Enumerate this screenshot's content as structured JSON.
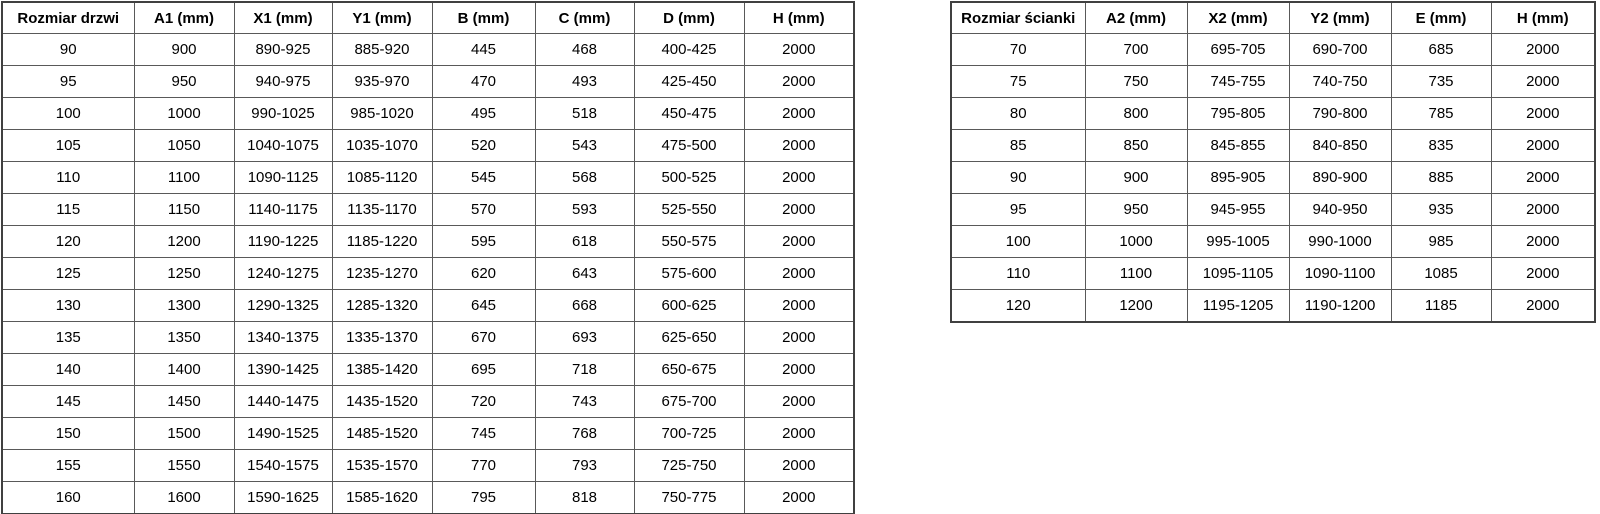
{
  "colors": {
    "background": "#ffffff",
    "border_inner": "#595959",
    "border_outer": "#404040",
    "text": "#000000"
  },
  "chart_data": [
    {
      "type": "table",
      "title": "Rozmiar drzwi",
      "columns": [
        "Rozmiar drzwi",
        "A1 (mm)",
        "X1 (mm)",
        "Y1 (mm)",
        "B (mm)",
        "C (mm)",
        "D (mm)",
        "H (mm)"
      ],
      "rows": [
        [
          "90",
          "900",
          "890-925",
          "885-920",
          "445",
          "468",
          "400-425",
          "2000"
        ],
        [
          "95",
          "950",
          "940-975",
          "935-970",
          "470",
          "493",
          "425-450",
          "2000"
        ],
        [
          "100",
          "1000",
          "990-1025",
          "985-1020",
          "495",
          "518",
          "450-475",
          "2000"
        ],
        [
          "105",
          "1050",
          "1040-1075",
          "1035-1070",
          "520",
          "543",
          "475-500",
          "2000"
        ],
        [
          "110",
          "1100",
          "1090-1125",
          "1085-1120",
          "545",
          "568",
          "500-525",
          "2000"
        ],
        [
          "115",
          "1150",
          "1140-1175",
          "1135-1170",
          "570",
          "593",
          "525-550",
          "2000"
        ],
        [
          "120",
          "1200",
          "1190-1225",
          "1185-1220",
          "595",
          "618",
          "550-575",
          "2000"
        ],
        [
          "125",
          "1250",
          "1240-1275",
          "1235-1270",
          "620",
          "643",
          "575-600",
          "2000"
        ],
        [
          "130",
          "1300",
          "1290-1325",
          "1285-1320",
          "645",
          "668",
          "600-625",
          "2000"
        ],
        [
          "135",
          "1350",
          "1340-1375",
          "1335-1370",
          "670",
          "693",
          "625-650",
          "2000"
        ],
        [
          "140",
          "1400",
          "1390-1425",
          "1385-1420",
          "695",
          "718",
          "650-675",
          "2000"
        ],
        [
          "145",
          "1450",
          "1440-1475",
          "1435-1520",
          "720",
          "743",
          "675-700",
          "2000"
        ],
        [
          "150",
          "1500",
          "1490-1525",
          "1485-1520",
          "745",
          "768",
          "700-725",
          "2000"
        ],
        [
          "155",
          "1550",
          "1540-1575",
          "1535-1570",
          "770",
          "793",
          "725-750",
          "2000"
        ],
        [
          "160",
          "1600",
          "1590-1625",
          "1585-1620",
          "795",
          "818",
          "750-775",
          "2000"
        ]
      ]
    },
    {
      "type": "table",
      "title": "Rozmiar ścianki",
      "columns": [
        "Rozmiar ścianki",
        "A2 (mm)",
        "X2 (mm)",
        "Y2 (mm)",
        "E (mm)",
        "H (mm)"
      ],
      "rows": [
        [
          "70",
          "700",
          "695-705",
          "690-700",
          "685",
          "2000"
        ],
        [
          "75",
          "750",
          "745-755",
          "740-750",
          "735",
          "2000"
        ],
        [
          "80",
          "800",
          "795-805",
          "790-800",
          "785",
          "2000"
        ],
        [
          "85",
          "850",
          "845-855",
          "840-850",
          "835",
          "2000"
        ],
        [
          "90",
          "900",
          "895-905",
          "890-900",
          "885",
          "2000"
        ],
        [
          "95",
          "950",
          "945-955",
          "940-950",
          "935",
          "2000"
        ],
        [
          "100",
          "1000",
          "995-1005",
          "990-1000",
          "985",
          "2000"
        ],
        [
          "110",
          "1100",
          "1095-1105",
          "1090-1100",
          "1085",
          "2000"
        ],
        [
          "120",
          "1200",
          "1195-1205",
          "1190-1200",
          "1185",
          "2000"
        ]
      ]
    }
  ]
}
